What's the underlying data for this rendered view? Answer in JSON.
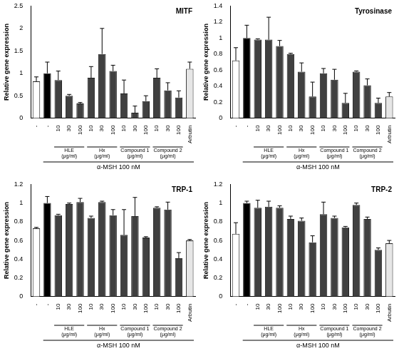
{
  "chart_data": [
    {
      "type": "bar",
      "title": "MITF",
      "y_label": "Relative gene expression",
      "categories": [
        "-",
        "-",
        "10",
        "30",
        "100",
        "10",
        "30",
        "100",
        "10",
        "30",
        "100",
        "10",
        "30",
        "100",
        "Arbutin"
      ],
      "values": [
        0.82,
        1.0,
        0.85,
        0.5,
        0.33,
        0.9,
        1.43,
        1.05,
        0.55,
        0.12,
        0.38,
        0.9,
        0.62,
        0.46,
        1.1
      ],
      "errors": [
        0.1,
        0.25,
        0.2,
        0.03,
        0.02,
        0.25,
        0.57,
        0.13,
        0.3,
        0.15,
        0.12,
        0.2,
        0.17,
        0.15,
        0.15
      ],
      "colors": [
        "#ffffff",
        "#000000",
        "#404040",
        "#404040",
        "#404040",
        "#404040",
        "#404040",
        "#404040",
        "#404040",
        "#404040",
        "#404040",
        "#404040",
        "#404040",
        "#404040",
        "#e6e6e6"
      ],
      "ylim": [
        0,
        2.5
      ],
      "yticks": [
        0,
        0.5,
        1,
        1.5,
        2,
        2.5
      ],
      "grid": false,
      "groups": [
        {
          "label": "HLE (μg/ml)",
          "start": 2,
          "end": 4
        },
        {
          "label": "Hx (μg/ml)",
          "start": 5,
          "end": 7
        },
        {
          "label": "Compound 1 (μg/ml)",
          "start": 8,
          "end": 10
        },
        {
          "label": "Compound 2 (μg/ml)",
          "start": 11,
          "end": 13
        }
      ],
      "treatment": {
        "label": "α-MSH 100 nM",
        "start": 1,
        "end": 14
      }
    },
    {
      "type": "bar",
      "title": "Tyrosinase",
      "y_label": "Relative gene expression",
      "categories": [
        "-",
        "-",
        "10",
        "30",
        "100",
        "10",
        "30",
        "100",
        "10",
        "30",
        "100",
        "10",
        "30",
        "100",
        "Arbutin"
      ],
      "values": [
        0.72,
        1.0,
        0.98,
        0.98,
        0.9,
        0.8,
        0.58,
        0.27,
        0.56,
        0.48,
        0.19,
        0.58,
        0.41,
        0.19,
        0.27
      ],
      "errors": [
        0.16,
        0.16,
        0.01,
        0.28,
        0.07,
        0.01,
        0.11,
        0.18,
        0.06,
        0.13,
        0.12,
        0.01,
        0.08,
        0.06,
        0.05
      ],
      "colors": [
        "#ffffff",
        "#000000",
        "#404040",
        "#404040",
        "#404040",
        "#404040",
        "#404040",
        "#404040",
        "#404040",
        "#404040",
        "#404040",
        "#404040",
        "#404040",
        "#404040",
        "#e6e6e6"
      ],
      "ylim": [
        0,
        1.4
      ],
      "yticks": [
        0,
        0.2,
        0.4,
        0.6,
        0.8,
        1,
        1.2,
        1.4
      ],
      "grid": false,
      "groups": [
        {
          "label": "HLE (μg/ml)",
          "start": 2,
          "end": 4
        },
        {
          "label": "Hx (μg/ml)",
          "start": 5,
          "end": 7
        },
        {
          "label": "Compound 1 (μg/ml)",
          "start": 8,
          "end": 10
        },
        {
          "label": "Compound 2 (μg/ml)",
          "start": 11,
          "end": 13
        }
      ],
      "treatment": {
        "label": "α-MSH 100 nM",
        "start": 1,
        "end": 14
      }
    },
    {
      "type": "bar",
      "title": "TRP-1",
      "y_label": "Relative gene expression",
      "categories": [
        "-",
        "-",
        "10",
        "30",
        "100",
        "10",
        "30",
        "100",
        "10",
        "30",
        "100",
        "10",
        "30",
        "100",
        "Arbutin"
      ],
      "values": [
        0.73,
        1.0,
        0.87,
        0.99,
        1.01,
        0.84,
        1.01,
        0.87,
        0.66,
        0.86,
        0.63,
        0.95,
        0.93,
        0.41,
        0.6
      ],
      "errors": [
        0.01,
        0.07,
        0.01,
        0.01,
        0.04,
        0.02,
        0.01,
        0.06,
        0.27,
        0.2,
        0.01,
        0.01,
        0.08,
        0.06,
        0.01
      ],
      "colors": [
        "#ffffff",
        "#000000",
        "#404040",
        "#404040",
        "#404040",
        "#404040",
        "#404040",
        "#404040",
        "#404040",
        "#404040",
        "#404040",
        "#404040",
        "#404040",
        "#404040",
        "#e6e6e6"
      ],
      "ylim": [
        0,
        1.2
      ],
      "yticks": [
        0,
        0.2,
        0.4,
        0.6,
        0.8,
        1,
        1.2
      ],
      "grid": false,
      "groups": [
        {
          "label": "HLE (μg/ml)",
          "start": 2,
          "end": 4
        },
        {
          "label": "Hx (μg/ml)",
          "start": 5,
          "end": 7
        },
        {
          "label": "Compound 1 (μg/ml)",
          "start": 8,
          "end": 10
        },
        {
          "label": "Compound 2 (μg/ml)",
          "start": 11,
          "end": 13
        }
      ],
      "treatment": {
        "label": "α-MSH 100 nM",
        "start": 1,
        "end": 14
      }
    },
    {
      "type": "bar",
      "title": "TRP-2",
      "y_label": "Relative gene expression",
      "categories": [
        "-",
        "-",
        "10",
        "30",
        "100",
        "10",
        "30",
        "100",
        "10",
        "30",
        "100",
        "10",
        "30",
        "100",
        "Arbutin"
      ],
      "values": [
        0.67,
        1.0,
        0.95,
        0.96,
        0.95,
        0.83,
        0.81,
        0.58,
        0.88,
        0.84,
        0.74,
        0.98,
        0.83,
        0.5,
        0.57
      ],
      "errors": [
        0.12,
        0.02,
        0.08,
        0.06,
        0.02,
        0.03,
        0.03,
        0.07,
        0.13,
        0.02,
        0.01,
        0.02,
        0.02,
        0.02,
        0.03
      ],
      "colors": [
        "#ffffff",
        "#000000",
        "#404040",
        "#404040",
        "#404040",
        "#404040",
        "#404040",
        "#404040",
        "#404040",
        "#404040",
        "#404040",
        "#404040",
        "#404040",
        "#404040",
        "#e6e6e6"
      ],
      "ylim": [
        0,
        1.2
      ],
      "yticks": [
        0,
        0.2,
        0.4,
        0.6,
        0.8,
        1,
        1.2
      ],
      "grid": false,
      "groups": [
        {
          "label": "HLE (μg/ml)",
          "start": 2,
          "end": 4
        },
        {
          "label": "Hx (μg/ml)",
          "start": 5,
          "end": 7
        },
        {
          "label": "Compound 1 (μg/ml)",
          "start": 8,
          "end": 10
        },
        {
          "label": "Compound 2 (μg/ml)",
          "start": 11,
          "end": 13
        }
      ],
      "treatment": {
        "label": "α-MSH 100 nM",
        "start": 1,
        "end": 14
      }
    }
  ]
}
